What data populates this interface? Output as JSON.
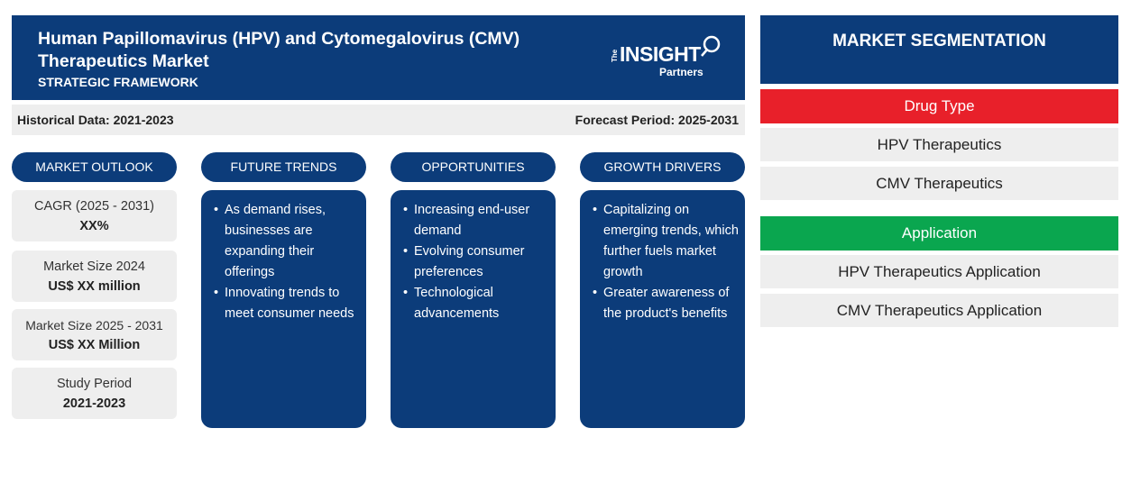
{
  "header": {
    "title": "Human Papillomavirus (HPV) and Cytomegalovirus (CMV) Therapeutics Market",
    "subtitle": "STRATEGIC FRAMEWORK",
    "logo": {
      "the": "The",
      "insight": "INSIGHT",
      "partners": "Partners"
    }
  },
  "period": {
    "historical": "Historical Data: 2021-2023",
    "forecast": "Forecast Period: 2025-2031"
  },
  "columns": {
    "outlook": "MARKET OUTLOOK",
    "trends": "FUTURE TRENDS",
    "opportunities": "OPPORTUNITIES",
    "drivers": "GROWTH DRIVERS"
  },
  "outlook": [
    {
      "label": "CAGR (2025 - 2031)",
      "value": "XX%"
    },
    {
      "label": "Market Size 2024",
      "value": "US$ XX million"
    },
    {
      "label": "Market Size 2025 - 2031",
      "value": "US$ XX Million"
    },
    {
      "label": "Study Period",
      "value": "2021-2023"
    }
  ],
  "trends": [
    "As demand rises, businesses are expanding their offerings",
    "Innovating trends to meet consumer needs"
  ],
  "opportunities": [
    "Increasing end-user demand",
    "Evolving consumer preferences",
    "Technological advancements"
  ],
  "drivers": [
    "Capitalizing on emerging trends, which further fuels market growth",
    "Greater awareness of the product's benefits"
  ],
  "segmentation": {
    "title": "MARKET SEGMENTATION",
    "groups": [
      {
        "name": "Drug Type",
        "color": "#e8202a",
        "items": [
          "HPV Therapeutics",
          "CMV Therapeutics"
        ]
      },
      {
        "name": "Application",
        "color": "#0aa64f",
        "items": [
          "HPV Therapeutics Application",
          "CMV Therapeutics Application"
        ]
      }
    ]
  },
  "colors": {
    "primary": "#0c3c7a",
    "panel_bg": "#eeeeee"
  }
}
